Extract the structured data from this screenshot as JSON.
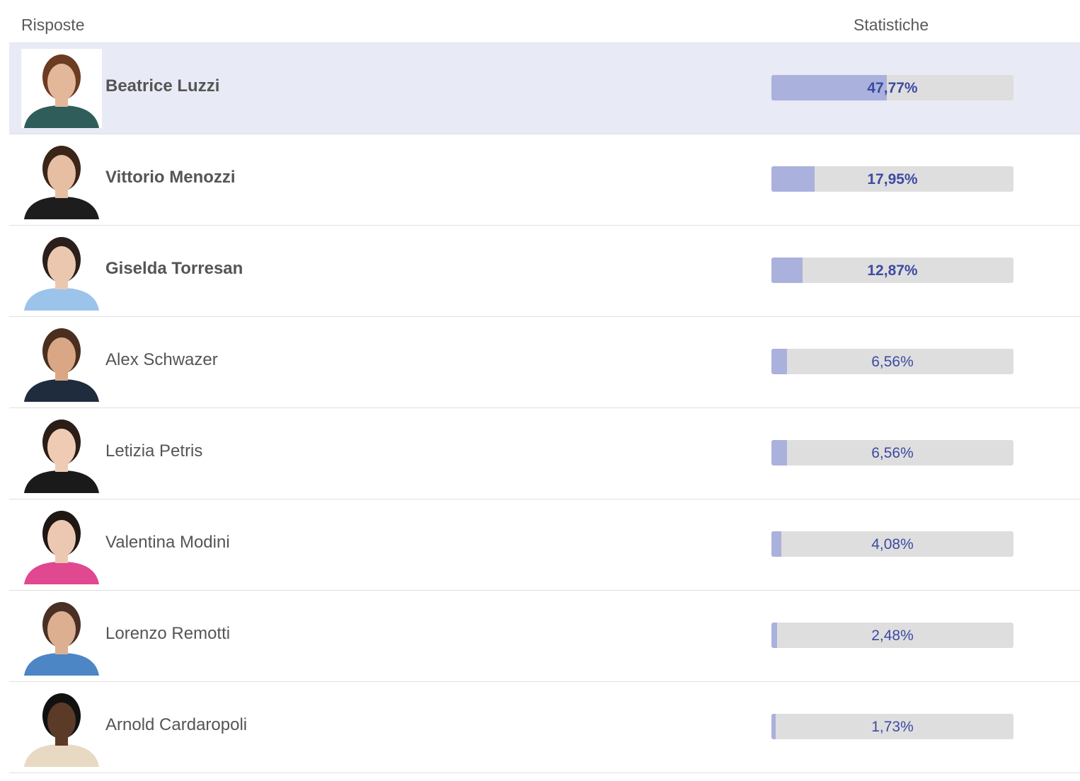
{
  "header": {
    "responses_label": "Risposte",
    "stats_label": "Statistiche"
  },
  "colors": {
    "selected_row": "#e8eaf5",
    "bar_fill": "#aab1dd",
    "bar_track": "#dedede",
    "percent_text": "#3d4aa3"
  },
  "options": [
    {
      "name": "Beatrice Luzzi",
      "percent": "47,77%",
      "value": 47.77,
      "bold": true,
      "selected": true,
      "photo": "avatar-photo"
    },
    {
      "name": "Vittorio Menozzi",
      "percent": "17,95%",
      "value": 17.95,
      "bold": true,
      "selected": false,
      "photo": "avatar-photo"
    },
    {
      "name": "Giselda Torresan",
      "percent": "12,87%",
      "value": 12.87,
      "bold": true,
      "selected": false,
      "photo": "avatar-photo"
    },
    {
      "name": "Alex Schwazer",
      "percent": "6,56%",
      "value": 6.56,
      "bold": false,
      "selected": false,
      "photo": "avatar-photo"
    },
    {
      "name": "Letizia Petris",
      "percent": "6,56%",
      "value": 6.56,
      "bold": false,
      "selected": false,
      "photo": "avatar-photo"
    },
    {
      "name": "Valentina Modini",
      "percent": "4,08%",
      "value": 4.08,
      "bold": false,
      "selected": false,
      "photo": "avatar-photo"
    },
    {
      "name": "Lorenzo Remotti",
      "percent": "2,48%",
      "value": 2.48,
      "bold": false,
      "selected": false,
      "photo": "avatar-photo"
    },
    {
      "name": "Arnold Cardaropoli",
      "percent": "1,73%",
      "value": 1.73,
      "bold": false,
      "selected": false,
      "photo": "avatar-photo"
    }
  ]
}
